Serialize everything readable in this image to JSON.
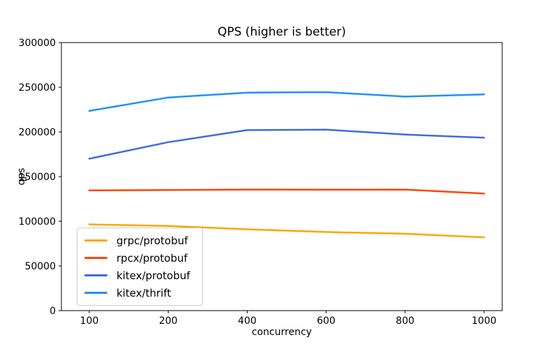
{
  "chart_data": {
    "type": "line",
    "title": "QPS (higher is better)",
    "xlabel": "concurrency",
    "ylabel": "qps",
    "x": [
      100,
      200,
      400,
      600,
      800,
      1000
    ],
    "x_tick_labels": [
      "100",
      "200",
      "400",
      "600",
      "800",
      "1000"
    ],
    "x_spacing": "equal",
    "ylim": [
      0,
      300000
    ],
    "y_ticks": [
      0,
      50000,
      100000,
      150000,
      200000,
      250000,
      300000
    ],
    "y_tick_labels": [
      "0",
      "50000",
      "100000",
      "150000",
      "200000",
      "250000",
      "300000"
    ],
    "grid": false,
    "legend_position": "lower-left",
    "series": [
      {
        "name": "grpc/protobuf",
        "color": "#ffa500",
        "values": [
          96500,
          94800,
          91000,
          88000,
          86000,
          82000
        ]
      },
      {
        "name": "rpcx/protobuf",
        "color": "#ff4500",
        "values": [
          134500,
          135000,
          135500,
          135300,
          135500,
          131000
        ]
      },
      {
        "name": "kitex/protobuf",
        "color": "#4169e1",
        "values": [
          170000,
          188500,
          202000,
          202500,
          197000,
          193500
        ]
      },
      {
        "name": "kitex/thrift",
        "color": "#1e90ff",
        "values": [
          223500,
          238500,
          244000,
          244500,
          239500,
          242000
        ]
      }
    ],
    "axis_color": "#000000",
    "background_color": "#ffffff"
  }
}
